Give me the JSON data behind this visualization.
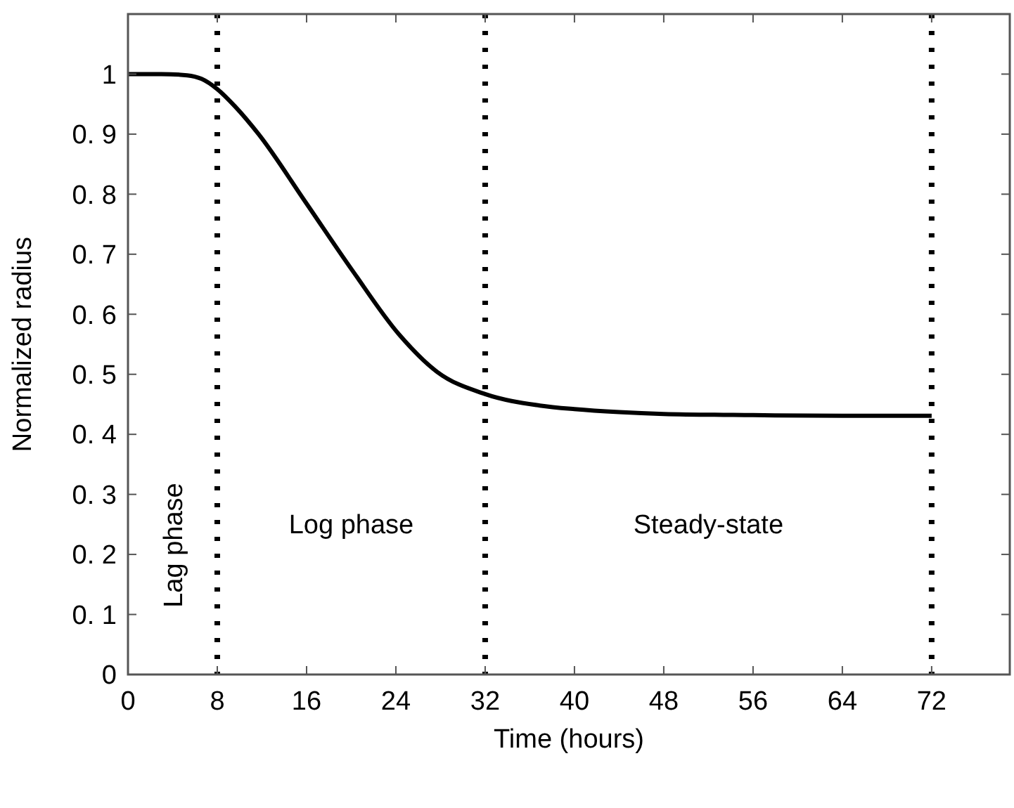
{
  "chart_data": {
    "type": "line",
    "xlabel": "Time (hours)",
    "ylabel": "Normalized radius",
    "xlim": [
      0,
      79
    ],
    "ylim": [
      0,
      1.1
    ],
    "xticks": [
      0,
      8,
      16,
      24,
      32,
      40,
      48,
      56,
      64,
      72
    ],
    "yticks": [
      0,
      {
        "value": 0.1,
        "label": "0. 1"
      },
      {
        "value": 0.2,
        "label": "0. 2"
      },
      {
        "value": 0.3,
        "label": "0. 3"
      },
      {
        "value": 0.4,
        "label": "0. 4"
      },
      {
        "value": 0.5,
        "label": "0. 5"
      },
      {
        "value": 0.6,
        "label": "0. 6"
      },
      {
        "value": 0.7,
        "label": "0. 7"
      },
      {
        "value": 0.8,
        "label": "0. 8"
      },
      {
        "value": 0.9,
        "label": "0. 9"
      },
      1
    ],
    "grid": false,
    "series": [
      {
        "color": "#000000",
        "x": [
          0,
          3,
          5.3,
          6.6,
          8,
          9.6,
          11.7,
          15.9,
          20.1,
          24.3,
          27.7,
          32,
          36.9,
          40,
          44,
          48,
          56,
          64,
          72
        ],
        "values": [
          1,
          1,
          0.998,
          0.992,
          0.975,
          0.946,
          0.9,
          0.787,
          0.673,
          0.566,
          0.504,
          0.467,
          0.448,
          0.442,
          0.437,
          0.434,
          0.432,
          0.431,
          0.431
        ]
      }
    ],
    "ref_lines": [
      {
        "axis": "x",
        "value": 8,
        "color": "#000000",
        "line_style": "dotted"
      },
      {
        "axis": "x",
        "value": 32,
        "color": "#000000",
        "line_style": "dotted"
      },
      {
        "axis": "x",
        "value": 72,
        "color": "#000000",
        "line_style": "dotted"
      }
    ],
    "annotations": [
      "Lag phase",
      "Log phase",
      "Steady-state"
    ]
  }
}
